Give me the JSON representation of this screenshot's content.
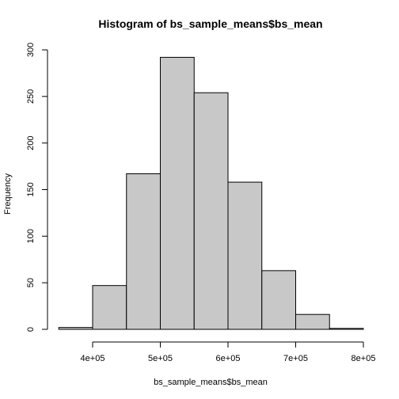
{
  "chart_data": {
    "type": "bar",
    "title": "Histogram of bs_sample_means$bs_mean",
    "xlabel": "bs_sample_means$bs_mean",
    "ylabel": "Frequency",
    "bins": [
      {
        "from": 350000,
        "to": 400000,
        "count": 2
      },
      {
        "from": 400000,
        "to": 450000,
        "count": 47
      },
      {
        "from": 450000,
        "to": 500000,
        "count": 167
      },
      {
        "from": 500000,
        "to": 550000,
        "count": 292
      },
      {
        "from": 550000,
        "to": 600000,
        "count": 254
      },
      {
        "from": 600000,
        "to": 650000,
        "count": 158
      },
      {
        "from": 650000,
        "to": 700000,
        "count": 63
      },
      {
        "from": 700000,
        "to": 750000,
        "count": 16
      },
      {
        "from": 750000,
        "to": 800000,
        "count": 1
      }
    ],
    "x_ticks": [
      {
        "value": 400000,
        "label": "4e+05"
      },
      {
        "value": 500000,
        "label": "5e+05"
      },
      {
        "value": 600000,
        "label": "6e+05"
      },
      {
        "value": 700000,
        "label": "7e+05"
      },
      {
        "value": 800000,
        "label": "8e+05"
      }
    ],
    "y_ticks": [
      {
        "value": 0,
        "label": "0"
      },
      {
        "value": 50,
        "label": "50"
      },
      {
        "value": 100,
        "label": "100"
      },
      {
        "value": 150,
        "label": "150"
      },
      {
        "value": 200,
        "label": "200"
      },
      {
        "value": 250,
        "label": "250"
      },
      {
        "value": 300,
        "label": "300"
      }
    ],
    "xlim": [
      350000,
      800000
    ],
    "ylim": [
      0,
      300
    ],
    "bar_color": "#c8c8c8",
    "border_color": "#000000",
    "grid": false,
    "legend": "none"
  }
}
